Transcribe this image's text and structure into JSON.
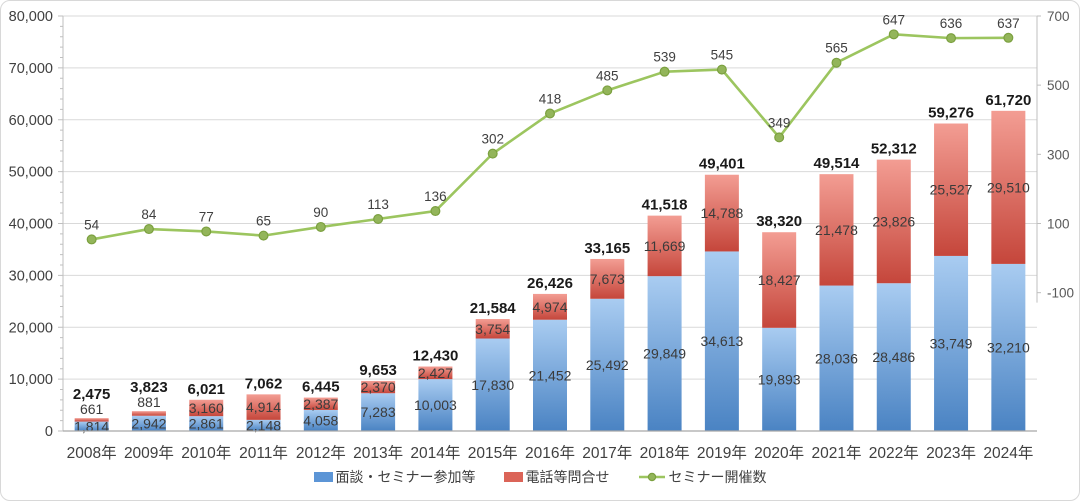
{
  "chart_data": {
    "type": "bar",
    "subtype": "stacked-bar-with-line",
    "title": "",
    "categories": [
      "2008年",
      "2009年",
      "2010年",
      "2011年",
      "2012年",
      "2013年",
      "2014年",
      "2015年",
      "2016年",
      "2017年",
      "2018年",
      "2019年",
      "2020年",
      "2021年",
      "2022年",
      "2023年",
      "2024年"
    ],
    "series": [
      {
        "name": "面談・セミナー参加等",
        "type": "bar",
        "axis": "left",
        "color_top": "#A9CCF1",
        "color_bottom": "#4A83C3",
        "legend_color": "#5C95D6",
        "values": [
          1814,
          2942,
          2861,
          2148,
          4058,
          7283,
          10003,
          17830,
          21452,
          25492,
          29849,
          34613,
          19893,
          28036,
          28486,
          33749,
          32210
        ]
      },
      {
        "name": "電話等問合せ",
        "type": "bar",
        "axis": "left",
        "color_top": "#F39D93",
        "color_bottom": "#C5463B",
        "legend_color": "#DB6458",
        "values": [
          661,
          881,
          3160,
          4914,
          2387,
          2370,
          2427,
          3754,
          4974,
          7673,
          11669,
          14788,
          18427,
          21478,
          23826,
          25527,
          29510
        ]
      },
      {
        "name": "セミナー開催数",
        "type": "line",
        "axis": "right",
        "line_color": "#9CC55F",
        "marker_fill": "#93B55A",
        "marker_stroke": "#7BA03F",
        "values": [
          54,
          84,
          77,
          65,
          90,
          113,
          136,
          302,
          418,
          485,
          539,
          545,
          349,
          565,
          647,
          636,
          637
        ]
      }
    ],
    "totals": [
      2475,
      3823,
      6021,
      7062,
      6445,
      9653,
      12430,
      21584,
      26426,
      33165,
      41518,
      49401,
      38320,
      49514,
      52312,
      59276,
      61720
    ],
    "left_axis": {
      "min": 0,
      "max": 80000,
      "step": 10000,
      "minor_step": 2000,
      "tick_labels": [
        "0",
        "10,000",
        "20,000",
        "30,000",
        "40,000",
        "50,000",
        "60,000",
        "70,000",
        "80,000"
      ]
    },
    "right_axis": {
      "scale_min": -500,
      "scale_max": 700,
      "tick_values": [
        700,
        500,
        300,
        100,
        -100
      ],
      "tick_labels": [
        "700",
        "500",
        "300",
        "100",
        "-100"
      ]
    },
    "legend_position": "bottom",
    "grid": true
  },
  "colors": {
    "grid": "#D9D9D9",
    "axis": "#BFBFBF",
    "axis_bottom": "#A6A6A6",
    "axis_text": "#404040",
    "right_axis_text": "#595959",
    "segment_label_text": "#3B3B3B",
    "total_text": "#1A1A1A",
    "line_label_text": "#404040",
    "background": "#FFFFFF",
    "border": "#D8D8D8"
  }
}
